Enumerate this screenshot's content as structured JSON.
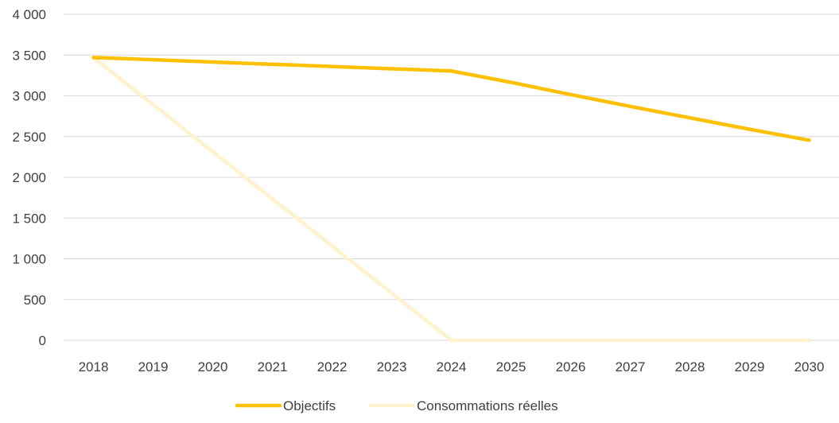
{
  "chart_data": {
    "type": "line",
    "categories": [
      "2018",
      "2019",
      "2020",
      "2021",
      "2022",
      "2023",
      "2024",
      "2025",
      "2026",
      "2027",
      "2028",
      "2029",
      "2030"
    ],
    "series": [
      {
        "name": "Objectifs",
        "color": "#ffc000",
        "values": [
          3470,
          3443,
          3415,
          3387,
          3360,
          3332,
          3305,
          3165,
          3015,
          2870,
          2730,
          2590,
          2455
        ]
      },
      {
        "name": "Consommations réelles",
        "color": "#fff2cc",
        "values": [
          3470,
          2892,
          2314,
          1736,
          1157,
          579,
          0,
          0,
          0,
          0,
          0,
          0,
          0
        ]
      }
    ],
    "yticks": [
      "0",
      "500",
      "1 000",
      "1 500",
      "2 000",
      "2 500",
      "3 000",
      "3 500",
      "4 000"
    ],
    "ylim": [
      0,
      4000
    ],
    "title": "",
    "xlabel": "",
    "ylabel": "",
    "grid": true,
    "legend_position": "bottom"
  }
}
